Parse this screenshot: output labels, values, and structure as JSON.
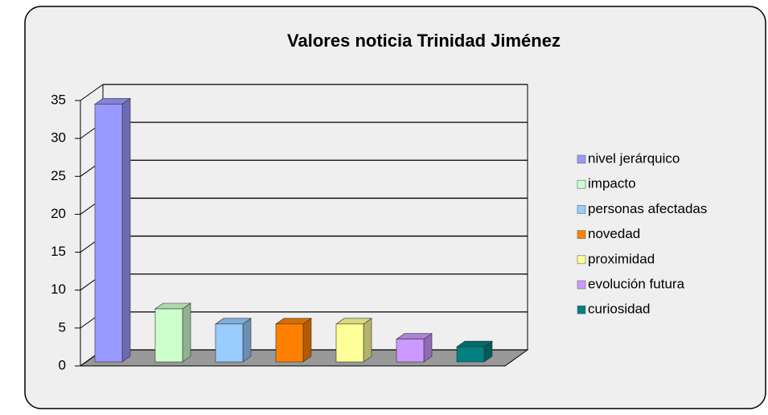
{
  "chart_data": {
    "type": "bar3d",
    "title": "Valores noticia Trinidad Jiménez",
    "categories": [
      null
    ],
    "series": [
      {
        "name": "nivel jerárquico",
        "color": "#9999ff",
        "values": [
          34
        ]
      },
      {
        "name": "impacto",
        "color": "#ccffcc",
        "values": [
          7
        ]
      },
      {
        "name": "personas afectadas",
        "color": "#99ccff",
        "values": [
          5
        ]
      },
      {
        "name": "novedad",
        "color": "#ff8000",
        "values": [
          5
        ]
      },
      {
        "name": "proximidad",
        "color": "#ffff99",
        "values": [
          5
        ]
      },
      {
        "name": "evolución futura",
        "color": "#cc99ff",
        "values": [
          3
        ]
      },
      {
        "name": "curiosidad",
        "color": "#008080",
        "values": [
          2
        ]
      }
    ],
    "ylim": [
      0,
      35
    ],
    "yticks": [
      0,
      5,
      10,
      15,
      20,
      25,
      30,
      35
    ],
    "grid": true,
    "legend": "right"
  }
}
